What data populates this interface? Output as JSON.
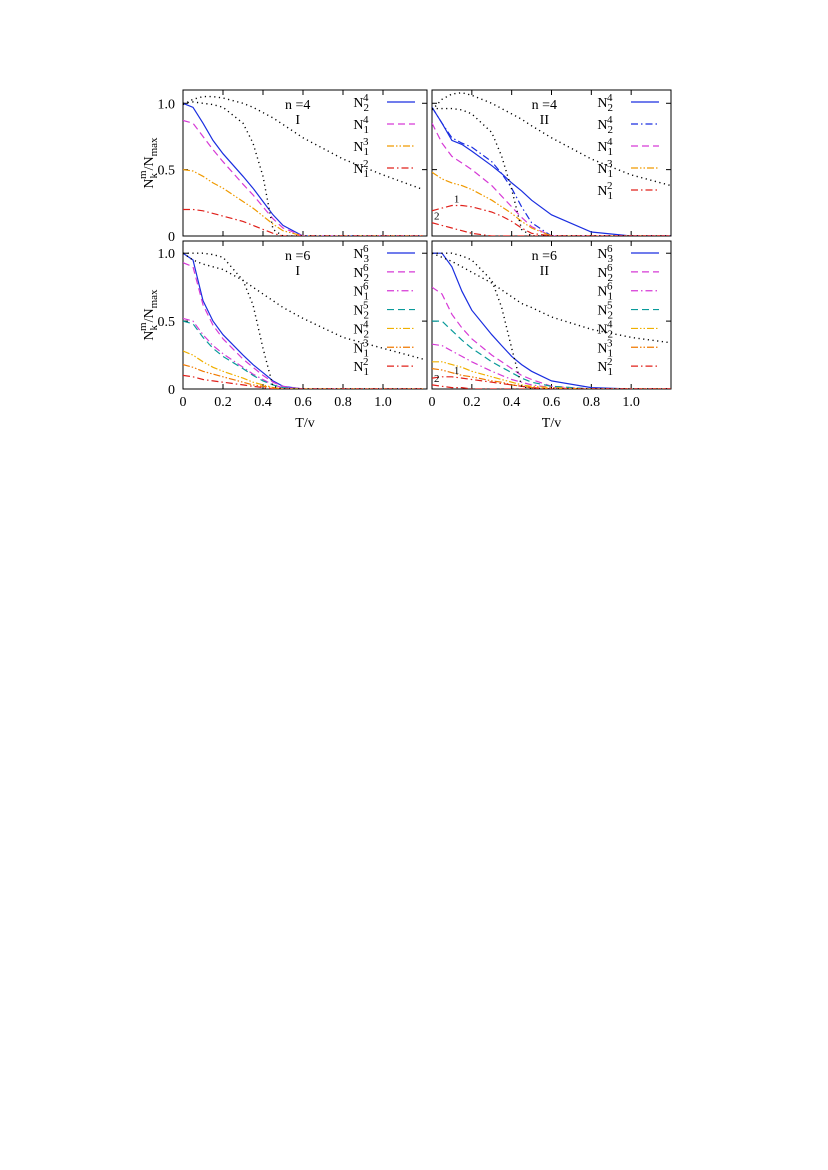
{
  "chart_data": [
    {
      "type": "line",
      "panel_label": "n =4",
      "case": "I",
      "y_label": {
        "text": "N",
        "sub": "k",
        "sup": "m",
        "text2": "/N",
        "sub2": "max"
      },
      "xlim": [
        0,
        1.22
      ],
      "ylim": [
        0,
        1.1
      ],
      "xticks": [
        0,
        0.2,
        0.4,
        0.6,
        0.8,
        {
          "value": 1,
          "label": "1.0"
        }
      ],
      "yticks": [
        0,
        0.5,
        {
          "value": 1,
          "label": "1.0"
        }
      ],
      "x": [
        0,
        0.05,
        0.1,
        0.15,
        0.2,
        0.3,
        0.35,
        0.4,
        0.45,
        0.5,
        0.6,
        0.8,
        1.0,
        1.2
      ],
      "series": [
        {
          "name": "N",
          "sub": "2",
          "sup": "4",
          "color": "#1a2ee0",
          "style": "solid",
          "values": [
            1.0,
            0.97,
            0.85,
            0.72,
            0.62,
            0.45,
            0.36,
            0.26,
            0.16,
            0.08,
            0,
            0,
            0,
            0
          ]
        },
        {
          "name": "N",
          "sub": "1",
          "sup": "4",
          "color": "#d63ad6",
          "style": "dashed",
          "values": [
            0.87,
            0.85,
            0.75,
            0.65,
            0.56,
            0.39,
            0.31,
            0.22,
            0.13,
            0.06,
            0,
            0,
            0,
            0
          ]
        },
        {
          "name": "N",
          "sub": "1",
          "sup": "3",
          "color": "#f09a00",
          "style": "dashdotdot",
          "values": [
            0.5,
            0.49,
            0.45,
            0.4,
            0.36,
            0.26,
            0.21,
            0.15,
            0.09,
            0.04,
            0,
            0,
            0,
            0
          ]
        },
        {
          "name": "N",
          "sub": "1",
          "sup": "2",
          "color": "#e0201a",
          "style": "dashdot",
          "values": [
            0.2,
            0.2,
            0.19,
            0.17,
            0.15,
            0.11,
            0.08,
            0.05,
            0.02,
            0,
            0,
            0,
            0,
            0
          ]
        },
        {
          "color": "#000000",
          "style": "dotted",
          "values": [
            1.0,
            1.01,
            1.0,
            0.99,
            0.97,
            0.85,
            0.7,
            0.45,
            0.05,
            0,
            0,
            0,
            0,
            0
          ]
        },
        {
          "color": "#000000",
          "style": "dotted",
          "values": [
            0.99,
            1.03,
            1.05,
            1.05,
            1.04,
            1.0,
            0.97,
            0.93,
            0.89,
            0.84,
            0.74,
            0.58,
            0.46,
            0.35
          ]
        }
      ]
    },
    {
      "type": "line",
      "panel_label": "n =4",
      "case": "II",
      "xlim": [
        0,
        1.2
      ],
      "ylim": [
        0,
        1.1
      ],
      "xticks": [
        0,
        0.2,
        0.4,
        0.6,
        0.8,
        {
          "value": 1,
          "label": "1.0"
        }
      ],
      "yticks": [
        0,
        0.5,
        {
          "value": 1,
          "label": "1.0"
        }
      ],
      "x": [
        0,
        0.05,
        0.1,
        0.15,
        0.2,
        0.3,
        0.35,
        0.4,
        0.45,
        0.5,
        0.6,
        0.8,
        1.0,
        1.2
      ],
      "series": [
        {
          "name": "N",
          "sub": "2",
          "sup": "4",
          "color": "#1a2ee0",
          "style": "solid",
          "values": [
            0.97,
            0.85,
            0.72,
            0.69,
            0.64,
            0.53,
            0.47,
            0.4,
            0.34,
            0.27,
            0.16,
            0.03,
            0,
            0
          ]
        },
        {
          "name": "N",
          "sub": "2",
          "sup": "4",
          "color": "#1a2ee0",
          "style": "dashdot",
          "values": [
            0.97,
            0.85,
            0.74,
            0.7,
            0.67,
            0.56,
            0.47,
            0.36,
            0.22,
            0.1,
            0,
            0,
            0,
            0
          ]
        },
        {
          "name": "N",
          "sub": "1",
          "sup": "4",
          "color": "#d63ad6",
          "style": "dashed",
          "values": [
            0.85,
            0.7,
            0.6,
            0.55,
            0.5,
            0.38,
            0.3,
            0.22,
            0.14,
            0.07,
            0,
            0,
            0,
            0
          ]
        },
        {
          "name": "N",
          "sub": "1",
          "sup": "3",
          "color": "#f09a00",
          "style": "dashdotdot",
          "values": [
            0.48,
            0.43,
            0.4,
            0.38,
            0.35,
            0.27,
            0.22,
            0.17,
            0.11,
            0.06,
            0,
            0,
            0,
            0
          ]
        },
        {
          "name": "N",
          "sub": "1",
          "sup": "2",
          "curve_label": "1",
          "color": "#e0201a",
          "style": "dashdot",
          "values": [
            0.19,
            0.21,
            0.23,
            0.23,
            0.22,
            0.18,
            0.15,
            0.11,
            0.06,
            0.02,
            0,
            0,
            0,
            0
          ]
        },
        {
          "curve_label": "2",
          "color": "#e0201a",
          "style": "dashdot",
          "values": [
            0.1,
            0.08,
            0.06,
            0.04,
            0.02,
            0,
            0,
            0,
            0,
            0,
            0,
            0,
            0,
            0
          ]
        },
        {
          "color": "#000000",
          "style": "dotted",
          "values": [
            0.96,
            0.96,
            0.96,
            0.95,
            0.92,
            0.78,
            0.6,
            0.35,
            0.05,
            0,
            0,
            0,
            0,
            0
          ]
        },
        {
          "color": "#000000",
          "style": "dotted",
          "values": [
            0.95,
            1.03,
            1.07,
            1.08,
            1.06,
            1.0,
            0.96,
            0.92,
            0.88,
            0.83,
            0.74,
            0.58,
            0.46,
            0.38
          ]
        }
      ]
    },
    {
      "type": "line",
      "panel_label": "n =6",
      "case": "I",
      "x_label": "T/v",
      "y_label": {
        "text": "N",
        "sub": "k",
        "sup": "m",
        "text2": "/N",
        "sub2": "max"
      },
      "xlim": [
        0,
        1.22
      ],
      "ylim": [
        0,
        1.09
      ],
      "xticks": [
        0,
        0.2,
        0.4,
        0.6,
        0.8,
        {
          "value": 1,
          "label": "1.0"
        }
      ],
      "yticks": [
        0,
        0.5,
        {
          "value": 1,
          "label": "1.0"
        }
      ],
      "x": [
        0,
        0.05,
        0.1,
        0.15,
        0.2,
        0.3,
        0.35,
        0.4,
        0.45,
        0.5,
        0.6,
        0.8,
        1.0,
        1.2
      ],
      "series": [
        {
          "name": "N",
          "sub": "3",
          "sup": "6",
          "color": "#1a2ee0",
          "style": "solid",
          "values": [
            1.0,
            0.95,
            0.65,
            0.5,
            0.4,
            0.25,
            0.18,
            0.12,
            0.06,
            0.02,
            0,
            0,
            0,
            0
          ]
        },
        {
          "name": "N",
          "sub": "2",
          "sup": "6",
          "color": "#d63ad6",
          "style": "dashed",
          "values": [
            0.93,
            0.9,
            0.62,
            0.47,
            0.37,
            0.22,
            0.16,
            0.1,
            0.05,
            0.02,
            0,
            0,
            0,
            0
          ]
        },
        {
          "name": "N",
          "sub": "1",
          "sup": "6",
          "color": "#d63ad6",
          "style": "dashdot",
          "values": [
            0.52,
            0.5,
            0.4,
            0.32,
            0.26,
            0.16,
            0.11,
            0.07,
            0.03,
            0.01,
            0,
            0,
            0,
            0
          ]
        },
        {
          "name": "N",
          "sub": "2",
          "sup": "5",
          "color": "#0a9a9a",
          "style": "dashed",
          "values": [
            0.5,
            0.48,
            0.38,
            0.3,
            0.24,
            0.15,
            0.1,
            0.06,
            0.03,
            0.01,
            0,
            0,
            0,
            0
          ]
        },
        {
          "name": "N",
          "sub": "2",
          "sup": "4",
          "color": "#f0b000",
          "style": "dashdotdot",
          "values": [
            0.28,
            0.25,
            0.2,
            0.16,
            0.13,
            0.08,
            0.05,
            0.03,
            0.01,
            0,
            0,
            0,
            0,
            0
          ]
        },
        {
          "name": "N",
          "sub": "1",
          "sup": "3",
          "color": "#f07a00",
          "style": "dashdotdot",
          "values": [
            0.18,
            0.16,
            0.13,
            0.11,
            0.09,
            0.05,
            0.03,
            0.02,
            0.01,
            0,
            0,
            0,
            0,
            0
          ]
        },
        {
          "name": "N",
          "sub": "1",
          "sup": "2",
          "color": "#e0201a",
          "style": "dashdot",
          "values": [
            0.1,
            0.09,
            0.07,
            0.06,
            0.05,
            0.03,
            0.02,
            0.01,
            0,
            0,
            0,
            0,
            0,
            0
          ]
        },
        {
          "color": "#000000",
          "style": "dotted",
          "values": [
            1.0,
            1.0,
            1.0,
            0.99,
            0.97,
            0.8,
            0.62,
            0.3,
            0.02,
            0,
            0,
            0,
            0,
            0
          ]
        },
        {
          "color": "#000000",
          "style": "dotted",
          "values": [
            1.0,
            0.95,
            0.92,
            0.9,
            0.88,
            0.8,
            0.75,
            0.7,
            0.65,
            0.6,
            0.52,
            0.38,
            0.3,
            0.22
          ]
        }
      ]
    },
    {
      "type": "line",
      "panel_label": "n =6",
      "case": "II",
      "x_label": "T/v",
      "xlim": [
        0,
        1.2
      ],
      "ylim": [
        0,
        1.09
      ],
      "xticks": [
        0,
        0.2,
        0.4,
        0.6,
        0.8,
        {
          "value": 1,
          "label": "1.0"
        }
      ],
      "yticks": [
        0,
        0.5,
        {
          "value": 1,
          "label": "1.0"
        }
      ],
      "x": [
        0,
        0.05,
        0.1,
        0.15,
        0.2,
        0.3,
        0.35,
        0.4,
        0.45,
        0.5,
        0.6,
        0.8,
        1.0,
        1.2
      ],
      "series": [
        {
          "name": "N",
          "sub": "3",
          "sup": "6",
          "color": "#1a2ee0",
          "style": "solid",
          "values": [
            1.0,
            1.0,
            0.9,
            0.72,
            0.58,
            0.4,
            0.32,
            0.24,
            0.18,
            0.13,
            0.06,
            0.01,
            0,
            0
          ]
        },
        {
          "name": "N",
          "sub": "2",
          "sup": "6",
          "color": "#d63ad6",
          "style": "dashed",
          "values": [
            0.75,
            0.7,
            0.55,
            0.45,
            0.37,
            0.25,
            0.2,
            0.15,
            0.1,
            0.07,
            0.02,
            0,
            0,
            0
          ]
        },
        {
          "name": "N",
          "sub": "1",
          "sup": "6",
          "color": "#d63ad6",
          "style": "dashdot",
          "values": [
            0.33,
            0.32,
            0.28,
            0.24,
            0.2,
            0.13,
            0.1,
            0.07,
            0.05,
            0.03,
            0.01,
            0,
            0,
            0
          ]
        },
        {
          "name": "N",
          "sub": "2",
          "sup": "5",
          "color": "#0a9a9a",
          "style": "dashed",
          "values": [
            0.5,
            0.5,
            0.43,
            0.36,
            0.3,
            0.2,
            0.16,
            0.12,
            0.08,
            0.05,
            0.02,
            0,
            0,
            0
          ]
        },
        {
          "name": "N",
          "sub": "2",
          "sup": "4",
          "color": "#f0b000",
          "style": "dashdotdot",
          "values": [
            0.2,
            0.2,
            0.18,
            0.16,
            0.13,
            0.09,
            0.07,
            0.05,
            0.03,
            0.02,
            0.01,
            0,
            0,
            0
          ]
        },
        {
          "name": "N",
          "sub": "1",
          "sup": "3",
          "color": "#f07a00",
          "style": "dashdotdot",
          "values": [
            0.15,
            0.14,
            0.12,
            0.1,
            0.09,
            0.06,
            0.05,
            0.03,
            0.02,
            0.01,
            0,
            0,
            0,
            0
          ]
        },
        {
          "name": "N",
          "sub": "1",
          "sup": "2",
          "curve_label": "1",
          "color": "#e0201a",
          "style": "dashdot",
          "values": [
            0.08,
            0.09,
            0.09,
            0.08,
            0.07,
            0.05,
            0.04,
            0.03,
            0.02,
            0.01,
            0,
            0,
            0,
            0
          ]
        },
        {
          "curve_label": "2",
          "color": "#e0201a",
          "style": "dashdot",
          "values": [
            0.03,
            0.02,
            0.01,
            0.01,
            0,
            0,
            0,
            0,
            0,
            0,
            0,
            0,
            0,
            0
          ]
        },
        {
          "color": "#000000",
          "style": "dotted",
          "values": [
            1.0,
            1.0,
            1.0,
            0.98,
            0.95,
            0.8,
            0.6,
            0.3,
            0.02,
            0,
            0,
            0,
            0,
            0
          ]
        },
        {
          "color": "#000000",
          "style": "dotted",
          "values": [
            1.0,
            0.97,
            0.94,
            0.9,
            0.86,
            0.78,
            0.73,
            0.68,
            0.63,
            0.6,
            0.53,
            0.44,
            0.38,
            0.34
          ]
        }
      ]
    }
  ]
}
